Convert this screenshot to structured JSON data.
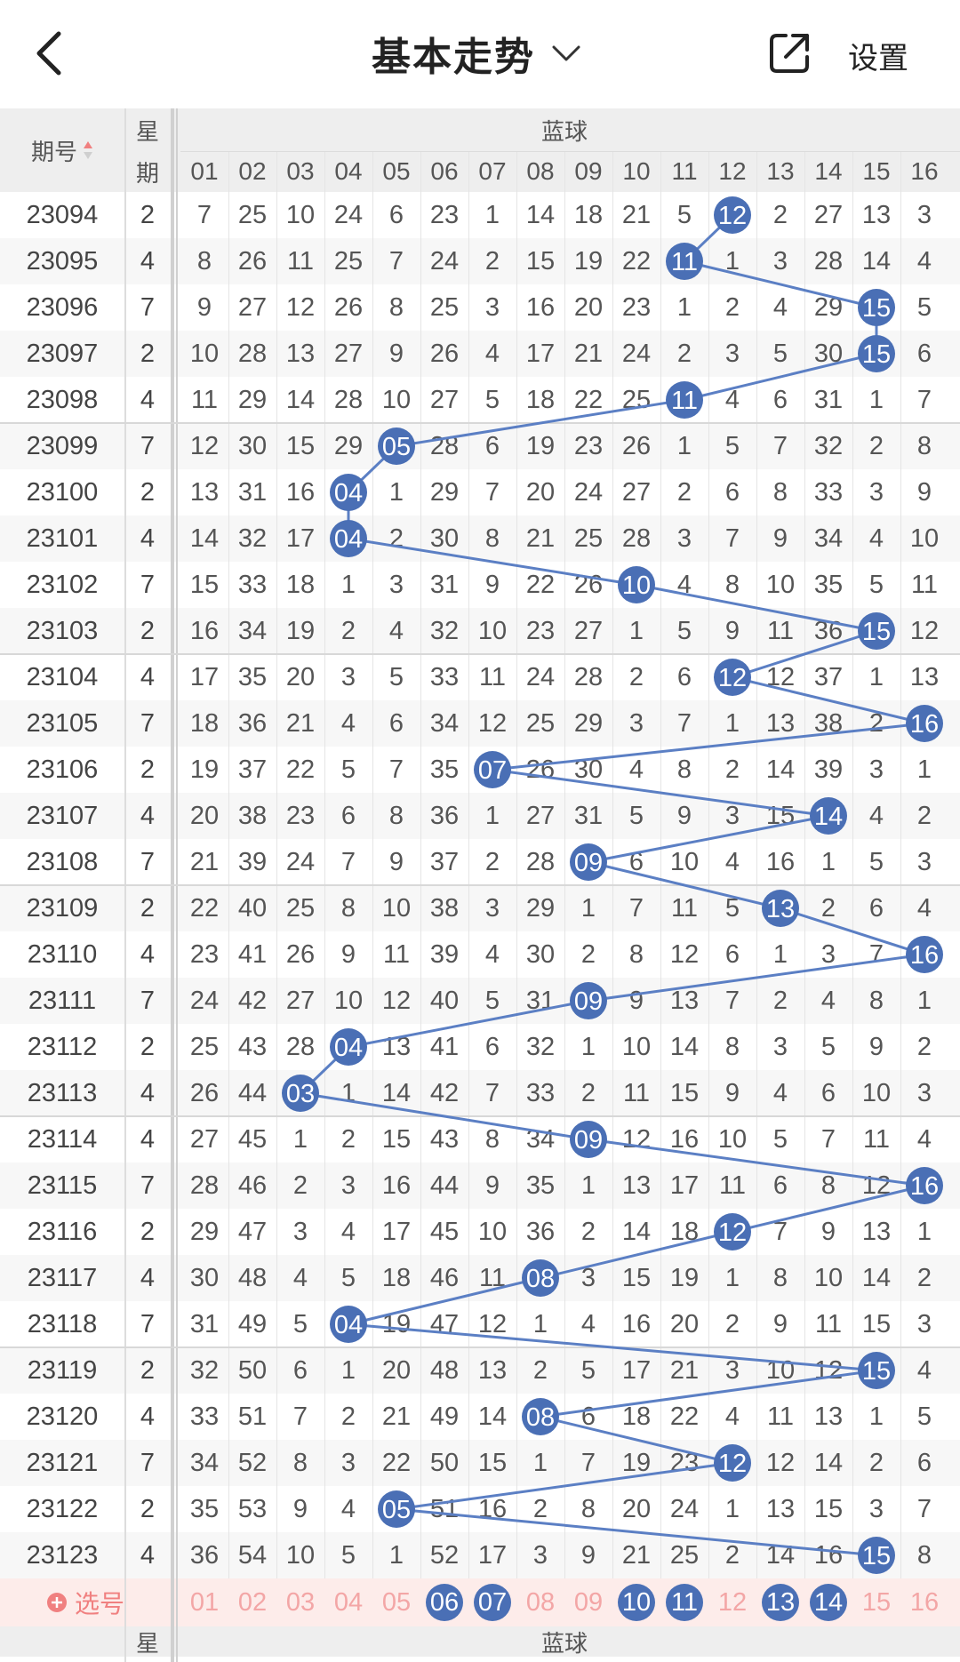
{
  "header": {
    "back_icon": "chevron-left-icon",
    "title": "基本走势",
    "title_caret_icon": "chevron-down-icon",
    "share_icon": "share-icon",
    "settings_label": "设置"
  },
  "table": {
    "issue_header": "期号",
    "sort_icon": "sort-icon",
    "weekday_header_top": "星",
    "weekday_header_bottom": "期",
    "section_title": "蓝球",
    "columns": [
      "01",
      "02",
      "03",
      "04",
      "05",
      "06",
      "07",
      "08",
      "09",
      "10",
      "11",
      "12",
      "13",
      "14",
      "15",
      "16"
    ],
    "rows": [
      {
        "issue": "23094",
        "weekday": "2",
        "cells": [
          "7",
          "25",
          "10",
          "24",
          "6",
          "23",
          "1",
          "14",
          "18",
          "21",
          "5",
          "12",
          "2",
          "27",
          "13",
          "3"
        ],
        "hit": 12
      },
      {
        "issue": "23095",
        "weekday": "4",
        "cells": [
          "8",
          "26",
          "11",
          "25",
          "7",
          "24",
          "2",
          "15",
          "19",
          "22",
          "11",
          "1",
          "3",
          "28",
          "14",
          "4"
        ],
        "hit": 11
      },
      {
        "issue": "23096",
        "weekday": "7",
        "cells": [
          "9",
          "27",
          "12",
          "26",
          "8",
          "25",
          "3",
          "16",
          "20",
          "23",
          "1",
          "2",
          "4",
          "29",
          "15",
          "5"
        ],
        "hit": 15
      },
      {
        "issue": "23097",
        "weekday": "2",
        "cells": [
          "10",
          "28",
          "13",
          "27",
          "9",
          "26",
          "4",
          "17",
          "21",
          "24",
          "2",
          "3",
          "5",
          "30",
          "15",
          "6"
        ],
        "hit": 15
      },
      {
        "issue": "23098",
        "weekday": "4",
        "cells": [
          "11",
          "29",
          "14",
          "28",
          "10",
          "27",
          "5",
          "18",
          "22",
          "25",
          "11",
          "4",
          "6",
          "31",
          "1",
          "7"
        ],
        "hit": 11
      },
      {
        "issue": "23099",
        "weekday": "7",
        "cells": [
          "12",
          "30",
          "15",
          "29",
          "05",
          "28",
          "6",
          "19",
          "23",
          "26",
          "1",
          "5",
          "7",
          "32",
          "2",
          "8"
        ],
        "hit": 5
      },
      {
        "issue": "23100",
        "weekday": "2",
        "cells": [
          "13",
          "31",
          "16",
          "04",
          "1",
          "29",
          "7",
          "20",
          "24",
          "27",
          "2",
          "6",
          "8",
          "33",
          "3",
          "9"
        ],
        "hit": 4
      },
      {
        "issue": "23101",
        "weekday": "4",
        "cells": [
          "14",
          "32",
          "17",
          "04",
          "2",
          "30",
          "8",
          "21",
          "25",
          "28",
          "3",
          "7",
          "9",
          "34",
          "4",
          "10"
        ],
        "hit": 4
      },
      {
        "issue": "23102",
        "weekday": "7",
        "cells": [
          "15",
          "33",
          "18",
          "1",
          "3",
          "31",
          "9",
          "22",
          "26",
          "10",
          "4",
          "8",
          "10",
          "35",
          "5",
          "11"
        ],
        "hit": 10
      },
      {
        "issue": "23103",
        "weekday": "2",
        "cells": [
          "16",
          "34",
          "19",
          "2",
          "4",
          "32",
          "10",
          "23",
          "27",
          "1",
          "5",
          "9",
          "11",
          "36",
          "15",
          "12"
        ],
        "hit": 15
      },
      {
        "issue": "23104",
        "weekday": "4",
        "cells": [
          "17",
          "35",
          "20",
          "3",
          "5",
          "33",
          "11",
          "24",
          "28",
          "2",
          "6",
          "12",
          "12",
          "37",
          "1",
          "13"
        ],
        "hit": 12
      },
      {
        "issue": "23105",
        "weekday": "7",
        "cells": [
          "18",
          "36",
          "21",
          "4",
          "6",
          "34",
          "12",
          "25",
          "29",
          "3",
          "7",
          "1",
          "13",
          "38",
          "2",
          "16"
        ],
        "hit": 16
      },
      {
        "issue": "23106",
        "weekday": "2",
        "cells": [
          "19",
          "37",
          "22",
          "5",
          "7",
          "35",
          "07",
          "26",
          "30",
          "4",
          "8",
          "2",
          "14",
          "39",
          "3",
          "1"
        ],
        "hit": 7
      },
      {
        "issue": "23107",
        "weekday": "4",
        "cells": [
          "20",
          "38",
          "23",
          "6",
          "8",
          "36",
          "1",
          "27",
          "31",
          "5",
          "9",
          "3",
          "15",
          "14",
          "4",
          "2"
        ],
        "hit": 14
      },
      {
        "issue": "23108",
        "weekday": "7",
        "cells": [
          "21",
          "39",
          "24",
          "7",
          "9",
          "37",
          "2",
          "28",
          "09",
          "6",
          "10",
          "4",
          "16",
          "1",
          "5",
          "3"
        ],
        "hit": 9
      },
      {
        "issue": "23109",
        "weekday": "2",
        "cells": [
          "22",
          "40",
          "25",
          "8",
          "10",
          "38",
          "3",
          "29",
          "1",
          "7",
          "11",
          "5",
          "13",
          "2",
          "6",
          "4"
        ],
        "hit": 13
      },
      {
        "issue": "23110",
        "weekday": "4",
        "cells": [
          "23",
          "41",
          "26",
          "9",
          "11",
          "39",
          "4",
          "30",
          "2",
          "8",
          "12",
          "6",
          "1",
          "3",
          "7",
          "16"
        ],
        "hit": 16
      },
      {
        "issue": "23111",
        "weekday": "7",
        "cells": [
          "24",
          "42",
          "27",
          "10",
          "12",
          "40",
          "5",
          "31",
          "09",
          "9",
          "13",
          "7",
          "2",
          "4",
          "8",
          "1"
        ],
        "hit": 9
      },
      {
        "issue": "23112",
        "weekday": "2",
        "cells": [
          "25",
          "43",
          "28",
          "04",
          "13",
          "41",
          "6",
          "32",
          "1",
          "10",
          "14",
          "8",
          "3",
          "5",
          "9",
          "2"
        ],
        "hit": 4
      },
      {
        "issue": "23113",
        "weekday": "4",
        "cells": [
          "26",
          "44",
          "03",
          "1",
          "14",
          "42",
          "7",
          "33",
          "2",
          "11",
          "15",
          "9",
          "4",
          "6",
          "10",
          "3"
        ],
        "hit": 3
      },
      {
        "issue": "23114",
        "weekday": "4",
        "cells": [
          "27",
          "45",
          "1",
          "2",
          "15",
          "43",
          "8",
          "34",
          "09",
          "12",
          "16",
          "10",
          "5",
          "7",
          "11",
          "4"
        ],
        "hit": 9
      },
      {
        "issue": "23115",
        "weekday": "7",
        "cells": [
          "28",
          "46",
          "2",
          "3",
          "16",
          "44",
          "9",
          "35",
          "1",
          "13",
          "17",
          "11",
          "6",
          "8",
          "12",
          "16"
        ],
        "hit": 16
      },
      {
        "issue": "23116",
        "weekday": "2",
        "cells": [
          "29",
          "47",
          "3",
          "4",
          "17",
          "45",
          "10",
          "36",
          "2",
          "14",
          "18",
          "12",
          "7",
          "9",
          "13",
          "1"
        ],
        "hit": 12
      },
      {
        "issue": "23117",
        "weekday": "4",
        "cells": [
          "30",
          "48",
          "4",
          "5",
          "18",
          "46",
          "11",
          "08",
          "3",
          "15",
          "19",
          "1",
          "8",
          "10",
          "14",
          "2"
        ],
        "hit": 8
      },
      {
        "issue": "23118",
        "weekday": "7",
        "cells": [
          "31",
          "49",
          "5",
          "04",
          "19",
          "47",
          "12",
          "1",
          "4",
          "16",
          "20",
          "2",
          "9",
          "11",
          "15",
          "3"
        ],
        "hit": 4
      },
      {
        "issue": "23119",
        "weekday": "2",
        "cells": [
          "32",
          "50",
          "6",
          "1",
          "20",
          "48",
          "13",
          "2",
          "5",
          "17",
          "21",
          "3",
          "10",
          "12",
          "15",
          "4"
        ],
        "hit": 15
      },
      {
        "issue": "23120",
        "weekday": "4",
        "cells": [
          "33",
          "51",
          "7",
          "2",
          "21",
          "49",
          "14",
          "08",
          "6",
          "18",
          "22",
          "4",
          "11",
          "13",
          "1",
          "5"
        ],
        "hit": 8
      },
      {
        "issue": "23121",
        "weekday": "7",
        "cells": [
          "34",
          "52",
          "8",
          "3",
          "22",
          "50",
          "15",
          "1",
          "7",
          "19",
          "23",
          "12",
          "12",
          "14",
          "2",
          "6"
        ],
        "hit": 12
      },
      {
        "issue": "23122",
        "weekday": "2",
        "cells": [
          "35",
          "53",
          "9",
          "4",
          "05",
          "51",
          "16",
          "2",
          "8",
          "20",
          "24",
          "1",
          "13",
          "15",
          "3",
          "7"
        ],
        "hit": 5
      },
      {
        "issue": "23123",
        "weekday": "4",
        "cells": [
          "36",
          "54",
          "10",
          "5",
          "1",
          "52",
          "17",
          "3",
          "9",
          "21",
          "25",
          "2",
          "14",
          "16",
          "15",
          "8"
        ],
        "hit": 15
      }
    ]
  },
  "selector": {
    "button_label": "选号",
    "plus_icon": "plus-circle-icon",
    "numbers": [
      "01",
      "02",
      "03",
      "04",
      "05",
      "06",
      "07",
      "08",
      "09",
      "10",
      "11",
      "12",
      "13",
      "14",
      "15",
      "16"
    ],
    "selected": [
      "06",
      "07",
      "10",
      "11",
      "13",
      "14"
    ]
  },
  "footer_header": {
    "weekday_header_top": "星",
    "section_title": "蓝球"
  },
  "colors": {
    "ball": "#4a6fb5",
    "line": "#5b7fc4",
    "header_bg": "#eeeeee",
    "selector_bg": "#fdecea",
    "selector_text": "#f3a6a6",
    "selector_button": "#f08080",
    "stripe": "#f7f7f7"
  }
}
